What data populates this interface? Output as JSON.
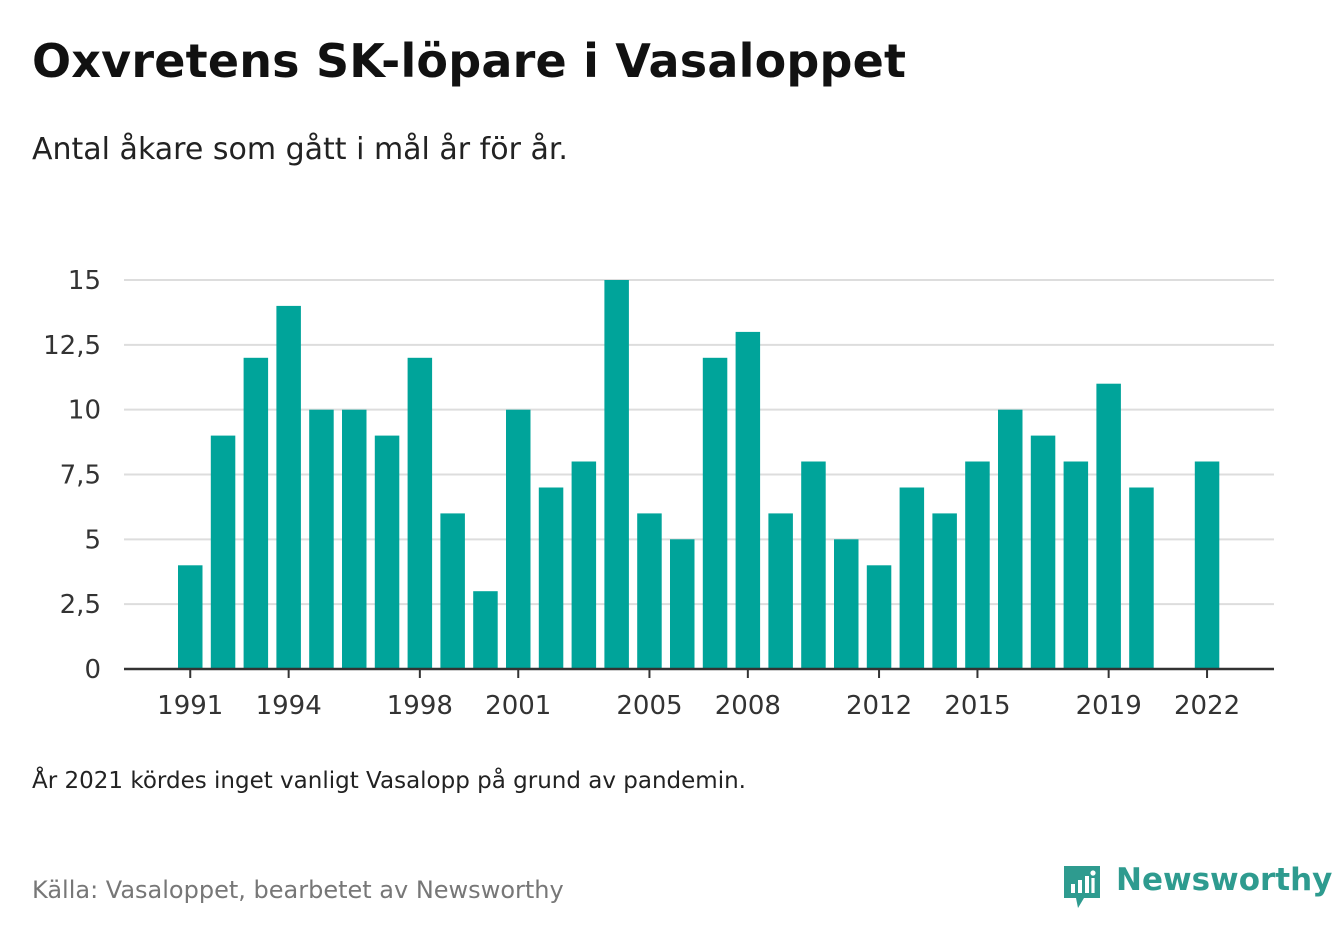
{
  "title": "Oxvretens SK-löpare i Vasaloppet",
  "subtitle": "Antal åkare som gått i mål år för år.",
  "note": "År 2021 kördes inget vanligt Vasalopp på grund av pandemin.",
  "source": "Källa: Vasaloppet, bearbetet av Newsworthy",
  "logo": {
    "text": "Newsworthy",
    "icon": "newsworthy-chart-bubble-icon"
  },
  "colors": {
    "bar": "#00a49a",
    "grid": "#dddddd",
    "axis": "#333333",
    "logo": "#2e9b8f"
  },
  "chart_data": {
    "type": "bar",
    "categories": [
      1991,
      1992,
      1993,
      1994,
      1995,
      1996,
      1997,
      1998,
      1999,
      2000,
      2001,
      2002,
      2003,
      2004,
      2005,
      2006,
      2007,
      2008,
      2009,
      2010,
      2011,
      2012,
      2013,
      2014,
      2015,
      2016,
      2017,
      2018,
      2019,
      2020,
      2021,
      2022
    ],
    "values": [
      4,
      9,
      12,
      14,
      10,
      10,
      9,
      12,
      6,
      3,
      10,
      7,
      8,
      15,
      6,
      5,
      12,
      13,
      6,
      8,
      5,
      4,
      7,
      6,
      8,
      10,
      9,
      8,
      11,
      7,
      null,
      8
    ],
    "ylim": [
      0,
      15
    ],
    "yticks": [
      0,
      2.5,
      5,
      7.5,
      10,
      12.5,
      15
    ],
    "ytick_labels": [
      "0",
      "2,5",
      "5",
      "7,5",
      "10",
      "12,5",
      "15"
    ],
    "xtick_labels": [
      "1991",
      "1994",
      "1998",
      "2001",
      "2005",
      "2008",
      "2012",
      "2015",
      "2019",
      "2022"
    ],
    "grid": "horizontal",
    "legend": "none"
  }
}
